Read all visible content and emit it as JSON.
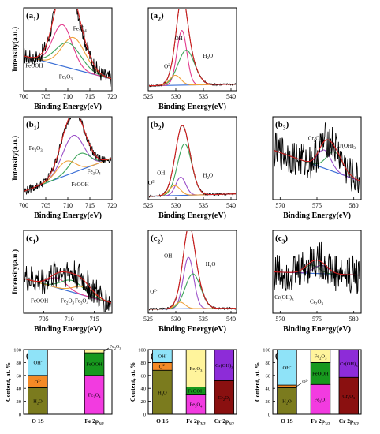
{
  "chart_data": [
    {
      "id": "a1",
      "type": "line",
      "panel_label": "(a1)",
      "xlabel": "Binding Energy(eV)",
      "ylabel": "Intensity(a.u.)",
      "xticks": [
        "700",
        "705",
        "710",
        "715",
        "720"
      ],
      "xlim": [
        700,
        720
      ],
      "ylim": [
        0,
        1
      ],
      "x_reversed": false,
      "annotations": [
        "Fe3O4",
        "FeOOH",
        "Fe2O3"
      ],
      "components": [
        {
          "name": "Fe3O4",
          "center": 708.8,
          "amp": 0.5,
          "width": 2.2,
          "color": "#e23a8c"
        },
        {
          "name": "FeOOH",
          "center": 711.3,
          "amp": 0.38,
          "width": 2.6,
          "color": "#f0a13a"
        },
        {
          "name": "Fe2O3",
          "center": 710.1,
          "amp": 0.3,
          "width": 2.8,
          "color": "#3da55b"
        }
      ],
      "baseline": {
        "start": 0.42,
        "end": 0.14
      },
      "noise": 0.1
    },
    {
      "id": "a2",
      "type": "line",
      "panel_label": "(a2)",
      "xlabel": "Binding Energy(eV)",
      "ylabel": "",
      "xticks": [
        "525",
        "530",
        "535",
        "540"
      ],
      "xlim": [
        525,
        541
      ],
      "ylim": [
        0,
        1
      ],
      "x_reversed": false,
      "annotations": [
        "OH",
        "H2O",
        "O2-"
      ],
      "components": [
        {
          "name": "OH",
          "center": 531.1,
          "amp": 0.66,
          "width": 0.9,
          "color": "#e23a8c"
        },
        {
          "name": "H2O",
          "center": 531.9,
          "amp": 0.42,
          "width": 1.5,
          "color": "#3da55b"
        },
        {
          "name": "O2-",
          "center": 529.9,
          "amp": 0.12,
          "width": 1.0,
          "color": "#f0a13a"
        }
      ],
      "baseline": {
        "start": 0.06,
        "end": 0.08
      },
      "noise": 0.012
    },
    {
      "id": "b1",
      "type": "line",
      "panel_label": "(b1)",
      "xlabel": "Binding Energy(eV)",
      "ylabel": "Intensity(a.u.)",
      "xticks": [
        "700",
        "705",
        "710",
        "715",
        "720"
      ],
      "xlim": [
        700,
        720
      ],
      "ylim": [
        0,
        1
      ],
      "x_reversed": false,
      "annotations": [
        "Fe2O3",
        "Fe3O4",
        "FeOOH"
      ],
      "components": [
        {
          "name": "Fe2O3",
          "center": 711.2,
          "amp": 0.45,
          "width": 2.4,
          "color": "#9b4fc8"
        },
        {
          "name": "Fe3O4",
          "center": 712.8,
          "amp": 0.2,
          "width": 2.2,
          "color": "#3da55b"
        },
        {
          "name": "FeOOH",
          "center": 709.6,
          "amp": 0.17,
          "width": 2.1,
          "color": "#f0a13a"
        }
      ],
      "baseline": {
        "start": 0.1,
        "end": 0.5
      },
      "noise": 0.05
    },
    {
      "id": "b2",
      "type": "line",
      "panel_label": "(b2)",
      "xlabel": "Binding Energy(eV)",
      "ylabel": "",
      "xticks": [
        "525",
        "530",
        "535",
        "540"
      ],
      "xlim": [
        525,
        541
      ],
      "ylim": [
        0,
        1
      ],
      "x_reversed": false,
      "annotations": [
        "OH",
        "H2O",
        "O2-"
      ],
      "components": [
        {
          "name": "H2O",
          "center": 531.6,
          "amp": 0.62,
          "width": 1.3,
          "color": "#3da55b"
        },
        {
          "name": "OH",
          "center": 530.9,
          "amp": 0.22,
          "width": 0.9,
          "color": "#9b4fc8"
        },
        {
          "name": "O2-",
          "center": 529.8,
          "amp": 0.12,
          "width": 1.0,
          "color": "#f0a13a"
        }
      ],
      "baseline": {
        "start": 0.04,
        "end": 0.07
      },
      "noise": 0.012
    },
    {
      "id": "b3",
      "type": "line",
      "panel_label": "(b3)",
      "xlabel": "Binding Energy(eV)",
      "ylabel": "",
      "xticks": [
        "570",
        "575",
        "580"
      ],
      "xlim": [
        569,
        581
      ],
      "ylim": [
        0,
        1
      ],
      "x_reversed": false,
      "annotations": [
        "Cr2O3",
        "Cr(OH)3"
      ],
      "components": [
        {
          "name": "Cr2O3",
          "center": 576.0,
          "amp": 0.22,
          "width": 0.9,
          "color": "#9b4fc8"
        },
        {
          "name": "Cr(OH)3",
          "center": 577.4,
          "amp": 0.24,
          "width": 1.1,
          "color": "#3da55b"
        }
      ],
      "baseline": {
        "start": 0.6,
        "end": 0.22
      },
      "noise": 0.22
    },
    {
      "id": "c1",
      "type": "line",
      "panel_label": "(c1)",
      "xlabel": "Binding Energy(eV)",
      "ylabel": "Intensity(a.u.)",
      "xticks": [
        "705",
        "710",
        "715"
      ],
      "xlim": [
        701,
        718.5
      ],
      "ylim": [
        0,
        1
      ],
      "x_reversed": false,
      "annotations": [
        "FeOOH",
        "Fe2O3",
        "Fe3O4"
      ],
      "components": [
        {
          "name": "FeOOH",
          "center": 707.7,
          "amp": 0.12,
          "width": 1.8,
          "color": "#e23a8c"
        },
        {
          "name": "Fe2O3",
          "center": 710.6,
          "amp": 0.14,
          "width": 2.2,
          "color": "#3da55b"
        },
        {
          "name": "Fe3O4",
          "center": 712.8,
          "amp": 0.1,
          "width": 2.0,
          "color": "#f0a13a"
        }
      ],
      "baseline": {
        "start": 0.42,
        "end": 0.12
      },
      "noise": 0.18
    },
    {
      "id": "c2",
      "type": "line",
      "panel_label": "(c2)",
      "xlabel": "Binding Energy(eV)",
      "ylabel": "",
      "xticks": [
        "525",
        "530",
        "535",
        "540"
      ],
      "xlim": [
        525,
        541
      ],
      "ylim": [
        0,
        1
      ],
      "x_reversed": false,
      "annotations": [
        "OH",
        "H2O",
        "O2-"
      ],
      "components": [
        {
          "name": "OH",
          "center": 532.3,
          "amp": 0.62,
          "width": 0.95,
          "color": "#9b4fc8"
        },
        {
          "name": "H2O",
          "center": 533.1,
          "amp": 0.42,
          "width": 1.4,
          "color": "#3da55b"
        },
        {
          "name": "O2-",
          "center": 530.8,
          "amp": 0.08,
          "width": 0.9,
          "color": "#f0a13a"
        }
      ],
      "baseline": {
        "start": 0.05,
        "end": 0.06
      },
      "noise": 0.012
    },
    {
      "id": "c3",
      "type": "line",
      "panel_label": "(c3)",
      "xlabel": "Binding Energy(eV)",
      "ylabel": "",
      "xticks": [
        "570",
        "575",
        "580"
      ],
      "xlim": [
        569,
        581
      ],
      "ylim": [
        0,
        1
      ],
      "x_reversed": false,
      "annotations": [
        "Cr(OH)3",
        "Cr2O3"
      ],
      "components": [
        {
          "name": "Cr(OH)3",
          "center": 574.3,
          "amp": 0.1,
          "width": 1.0,
          "color": "#3da55b"
        },
        {
          "name": "Cr2O3",
          "center": 575.6,
          "amp": 0.1,
          "width": 1.0,
          "color": "#9b4fc8"
        }
      ],
      "baseline": {
        "start": 0.5,
        "end": 0.46
      },
      "noise": 0.24
    },
    {
      "id": "d1",
      "type": "bar",
      "stacked": true,
      "panel_label": "(d1)",
      "ylabel": "Content, at. %",
      "ylim": [
        0,
        100
      ],
      "yticks": [
        "0",
        "20",
        "40",
        "60",
        "80",
        "100"
      ],
      "categories": [
        "O 1S",
        "Fe 2p3/2"
      ],
      "bars": [
        {
          "category": "O 1S",
          "segments": [
            {
              "name": "H2O",
              "value": 41,
              "color": "#7b7b1e",
              "label": "H2O"
            },
            {
              "name": "O2-",
              "value": 19,
              "color": "#f48a26",
              "label": "O2-"
            },
            {
              "name": "OH-",
              "value": 40,
              "color": "#8fe3f8",
              "label": "OH-"
            }
          ]
        },
        {
          "category": "Fe 2p3/2",
          "segments": [
            {
              "name": "Fe3O4",
              "value": 60,
              "color": "#f23be0",
              "label": "Fe3O4"
            },
            {
              "name": "FeOOH",
              "value": 35,
              "color": "#18981e",
              "label": "FeOOH"
            },
            {
              "name": "Fe2O3",
              "value": 5,
              "color": "#fff49c",
              "label": "Fe2O3"
            }
          ]
        }
      ]
    },
    {
      "id": "d2",
      "type": "bar",
      "stacked": true,
      "panel_label": "(d2)",
      "ylabel": "Content, at. %",
      "ylim": [
        0,
        100
      ],
      "yticks": [
        "0",
        "20",
        "40",
        "60",
        "80",
        "100"
      ],
      "categories": [
        "O 1S",
        "Fe 2p3/2",
        "Cr 2p3/2"
      ],
      "bars": [
        {
          "category": "O 1S",
          "segments": [
            {
              "name": "H2O",
              "value": 68,
              "color": "#7b7b1e",
              "label": "H2O"
            },
            {
              "name": "O2-",
              "value": 12,
              "color": "#f48a26",
              "label": "O2-"
            },
            {
              "name": "OH-",
              "value": 20,
              "color": "#8fe3f8",
              "label": "OH-"
            }
          ]
        },
        {
          "category": "Fe 2p3/2",
          "segments": [
            {
              "name": "Fe3O4",
              "value": 31,
              "color": "#f23be0",
              "label": "Fe3O4"
            },
            {
              "name": "FeOOH",
              "value": 11,
              "color": "#18981e",
              "label": "FeOOH"
            },
            {
              "name": "Fe2O3",
              "value": 58,
              "color": "#fff49c",
              "label": "Fe2O3"
            }
          ]
        },
        {
          "category": "Cr 2p3/2",
          "segments": [
            {
              "name": "Cr2O3",
              "value": 52,
              "color": "#8a1010",
              "label": "Cr2O3"
            },
            {
              "name": "Cr(OH)3",
              "value": 48,
              "color": "#8d2cd8",
              "label": "Cr(OH)3"
            }
          ]
        }
      ]
    },
    {
      "id": "d3",
      "type": "bar",
      "stacked": true,
      "panel_label": "(d3)",
      "ylabel": "Content, at. %",
      "ylim": [
        0,
        100
      ],
      "yticks": [
        "0",
        "20",
        "40",
        "60",
        "80",
        "100"
      ],
      "categories": [
        "O 1S",
        "Fe 2p3/2",
        "Cr 2p3/2"
      ],
      "bars": [
        {
          "category": "O 1S",
          "segments": [
            {
              "name": "H2O",
              "value": 41,
              "color": "#7b7b1e",
              "label": "H2O"
            },
            {
              "name": "O2-",
              "value": 4,
              "color": "#f48a26",
              "label": "O2-"
            },
            {
              "name": "OH-",
              "value": 55,
              "color": "#8fe3f8",
              "label": "OH-"
            }
          ]
        },
        {
          "category": "Fe 2p3/2",
          "segments": [
            {
              "name": "Fe3O4",
              "value": 46,
              "color": "#f23be0",
              "label": "Fe3O4"
            },
            {
              "name": "FeOOH",
              "value": 34,
              "color": "#18981e",
              "label": "FeOOH"
            },
            {
              "name": "Fe2O3",
              "value": 20,
              "color": "#fff49c",
              "label": "Fe2O3"
            }
          ]
        },
        {
          "category": "Cr 2p3/2",
          "segments": [
            {
              "name": "Cr2O3",
              "value": 57,
              "color": "#8a1010",
              "label": "Cr2O3"
            },
            {
              "name": "Cr(OH)3",
              "value": 43,
              "color": "#8d2cd8",
              "label": "Cr(OH)3"
            }
          ]
        }
      ]
    }
  ]
}
